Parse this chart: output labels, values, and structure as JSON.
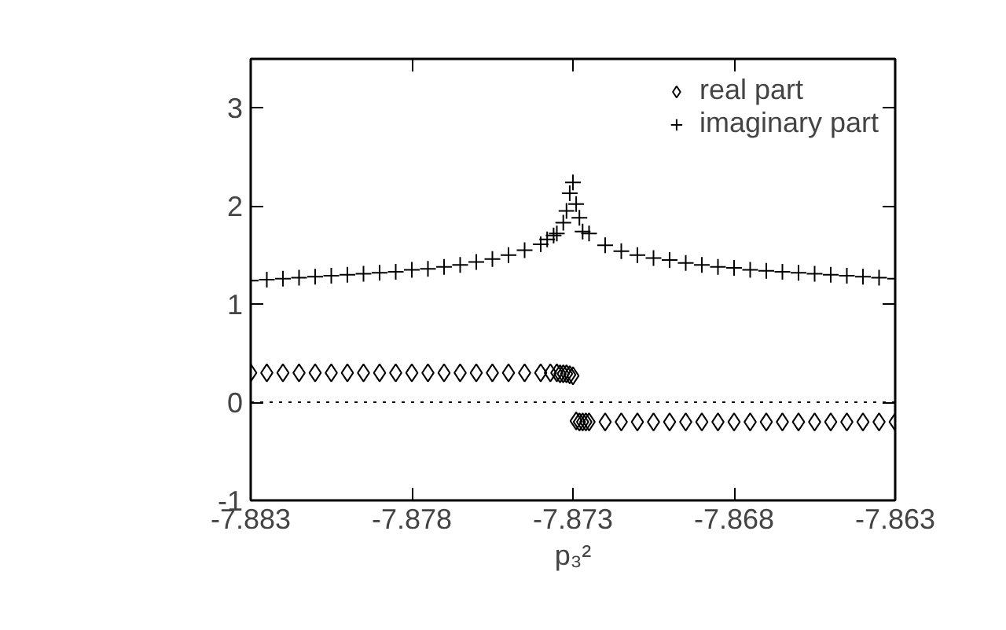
{
  "chart_data": {
    "type": "scatter",
    "xlabel": "p₃²",
    "xlim": [
      -7.883,
      -7.863
    ],
    "ylim": [
      -1,
      3.5
    ],
    "xticks": [
      -7.883,
      -7.878,
      -7.873,
      -7.868,
      -7.863
    ],
    "yticks": [
      -1,
      0,
      1,
      2,
      3
    ],
    "grid": false,
    "legend": "top right",
    "ref_lines": [
      {
        "axis": "y",
        "value": 0,
        "color": "#000000",
        "line_style": "dotted"
      }
    ],
    "series": [
      {
        "name": "real part",
        "color": "#000000",
        "marker": "diamond",
        "x": [
          -7.883,
          -7.8825,
          -7.882,
          -7.8815,
          -7.881,
          -7.8805,
          -7.88,
          -7.8795,
          -7.879,
          -7.8785,
          -7.878,
          -7.8775,
          -7.877,
          -7.8765,
          -7.876,
          -7.8755,
          -7.875,
          -7.8745,
          -7.874,
          -7.8737,
          -7.8735,
          -7.8734,
          -7.8733,
          -7.8732,
          -7.8731,
          -7.873,
          -7.8729,
          -7.8728,
          -7.8727,
          -7.8726,
          -7.8725,
          -7.872,
          -7.8715,
          -7.871,
          -7.8705,
          -7.87,
          -7.8695,
          -7.869,
          -7.8685,
          -7.868,
          -7.8675,
          -7.867,
          -7.8665,
          -7.866,
          -7.8655,
          -7.865,
          -7.8645,
          -7.864,
          -7.8635,
          -7.863
        ],
        "values": [
          0.3,
          0.3,
          0.3,
          0.3,
          0.3,
          0.3,
          0.3,
          0.3,
          0.3,
          0.3,
          0.3,
          0.3,
          0.3,
          0.3,
          0.3,
          0.3,
          0.3,
          0.3,
          0.3,
          0.3,
          0.3,
          0.29,
          0.29,
          0.29,
          0.28,
          0.27,
          -0.19,
          -0.2,
          -0.2,
          -0.2,
          -0.2,
          -0.2,
          -0.2,
          -0.2,
          -0.2,
          -0.2,
          -0.2,
          -0.2,
          -0.2,
          -0.2,
          -0.2,
          -0.2,
          -0.2,
          -0.2,
          -0.2,
          -0.2,
          -0.2,
          -0.2,
          -0.2,
          -0.2
        ]
      },
      {
        "name": "imaginary part",
        "color": "#000000",
        "marker": "cross",
        "x": [
          -7.883,
          -7.8825,
          -7.882,
          -7.8815,
          -7.881,
          -7.8805,
          -7.88,
          -7.8795,
          -7.879,
          -7.8785,
          -7.878,
          -7.8775,
          -7.877,
          -7.8765,
          -7.876,
          -7.8755,
          -7.875,
          -7.8745,
          -7.874,
          -7.8738,
          -7.8736,
          -7.8735,
          -7.8733,
          -7.8732,
          -7.8731,
          -7.873,
          -7.8729,
          -7.8728,
          -7.8727,
          -7.8725,
          -7.872,
          -7.8715,
          -7.871,
          -7.8705,
          -7.87,
          -7.8695,
          -7.869,
          -7.8685,
          -7.868,
          -7.8675,
          -7.867,
          -7.8665,
          -7.866,
          -7.8655,
          -7.865,
          -7.8645,
          -7.864,
          -7.8635,
          -7.863
        ],
        "values": [
          1.24,
          1.25,
          1.26,
          1.27,
          1.28,
          1.29,
          1.3,
          1.31,
          1.32,
          1.33,
          1.35,
          1.36,
          1.38,
          1.4,
          1.43,
          1.46,
          1.5,
          1.55,
          1.61,
          1.66,
          1.7,
          1.72,
          1.83,
          1.95,
          2.13,
          2.24,
          2.02,
          1.88,
          1.74,
          1.72,
          1.6,
          1.54,
          1.5,
          1.47,
          1.45,
          1.42,
          1.4,
          1.38,
          1.37,
          1.35,
          1.34,
          1.33,
          1.32,
          1.31,
          1.3,
          1.29,
          1.28,
          1.27,
          1.26
        ]
      }
    ]
  }
}
